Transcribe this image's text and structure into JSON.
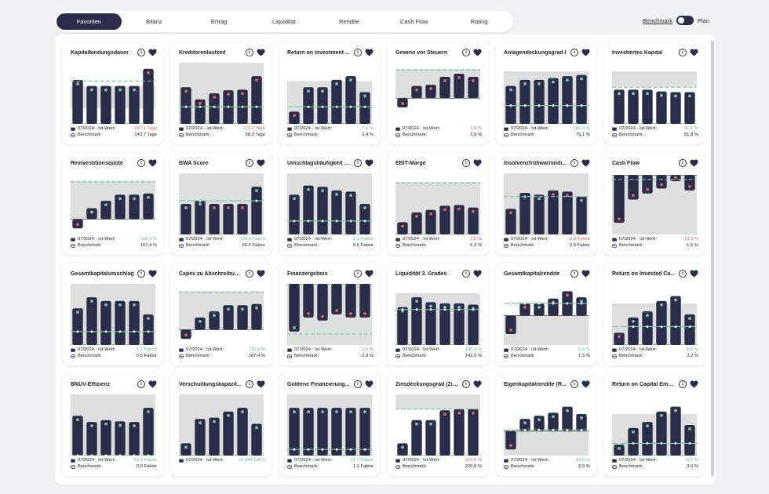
{
  "tabs": [
    {
      "label": "Favoriten",
      "active": true
    },
    {
      "label": "Bilanz"
    },
    {
      "label": "Ertrag"
    },
    {
      "label": "Liquidität"
    },
    {
      "label": "Rendite"
    },
    {
      "label": "Cash Flow"
    },
    {
      "label": "Rating"
    }
  ],
  "benchmark_toggle": {
    "left_label": "Benchmark",
    "right_label": "Plan"
  },
  "labels": {
    "period": "07/2024",
    "actual": "· Ist-Wert:",
    "benchmark": "Benchmark:",
    "info": "i"
  },
  "colors": {
    "bar": "#2a2d4a",
    "bg": "#dfdfdf",
    "line": "#7fc7a4",
    "red": "#e0605c",
    "green": "#5cc38f",
    "bench_dot": "#ffffff"
  },
  "cards": [
    {
      "title": "Kapitalbindungsdauer",
      "value": "187,1 Tage",
      "value_color": "red",
      "benchmark": "143,7 Tage",
      "base": 0,
      "values": [
        0.72,
        0.62,
        0.62,
        0.62,
        0.62,
        0.9
      ],
      "dots": [
        "g",
        "g",
        "g",
        "g",
        "g",
        "r"
      ],
      "bg": [
        0.25,
        0.62
      ],
      "target": 0.7
    },
    {
      "title": "Kreditorenlaufzeit",
      "value": "173,1 Tage",
      "value_color": "red",
      "benchmark": "58,3 Tage",
      "base": 0,
      "values": [
        0.6,
        0.4,
        0.5,
        0.55,
        0.56,
        0.78
      ],
      "dots": [
        "r",
        "r",
        "r",
        "r",
        "r",
        "r"
      ],
      "bg": [
        0,
        1
      ],
      "bench_line": 0.28
    },
    {
      "title": "Return on Investment ...",
      "value": "7,1 %",
      "value_color": "green",
      "benchmark": "3,4 %",
      "base": 0,
      "values": [
        0.2,
        0.6,
        0.6,
        0.72,
        0.78,
        0.52
      ],
      "dots": [
        "r",
        "g",
        "g",
        "g",
        "g",
        "g"
      ],
      "bg": [
        0,
        0.7
      ],
      "bench_line": 0.28
    },
    {
      "title": "Gewinn vor Steuern",
      "value": "2,0 %",
      "value_color": "red",
      "benchmark": "3,9 %",
      "base": 0.42,
      "values": [
        -0.15,
        0.2,
        0.22,
        0.35,
        0.4,
        0.35
      ],
      "dots": [
        "r",
        "r",
        "r",
        "r",
        "r",
        "r"
      ],
      "bg": [
        0.42,
        0.9
      ],
      "target": 0.88
    },
    {
      "title": "Anlagendeckungsgrad I",
      "value": "160,4 %",
      "value_color": "green",
      "benchmark": "76,1 %",
      "base": 0,
      "values": [
        0.62,
        0.72,
        0.72,
        0.75,
        0.78,
        0.8
      ],
      "dots": [
        "g",
        "g",
        "g",
        "g",
        "g",
        "g"
      ],
      "bg": [
        0,
        0.86
      ],
      "bench_line": 0.3
    },
    {
      "title": "Investiertes Kapital",
      "value": "50,6 %",
      "value_color": "green",
      "benchmark": "81,9 %",
      "base": 0,
      "values": [
        0.56,
        0.56,
        0.56,
        0.53,
        0.52,
        0.52
      ],
      "dots": [
        "g",
        "g",
        "g",
        "g",
        "g",
        "g"
      ],
      "bg": [
        0.6,
        0.86
      ],
      "target": 0.6
    },
    {
      "title": "Reinvestitionsquote",
      "value": "118,4 %",
      "value_color": "green",
      "benchmark": "167,4 %",
      "base": 0.25,
      "values": [
        -0.15,
        0.18,
        0.3,
        0.4,
        0.4,
        0.42
      ],
      "dots": [
        "r",
        "g",
        "g",
        "g",
        "g",
        "g"
      ],
      "bg": [
        0.25,
        0.88
      ],
      "target": 0.86
    },
    {
      "title": "BWA Score",
      "value": "100,0 Faktor",
      "value_color": "green",
      "benchmark": "66,0 Faktor",
      "base": 0,
      "values": [
        0.5,
        0.56,
        0.5,
        0.5,
        0.5,
        0.78
      ],
      "dots": [
        "g",
        "g",
        "r",
        "r",
        "r",
        "g"
      ],
      "bg": [
        0,
        1
      ],
      "bench_line": 0.55
    },
    {
      "title": "Umschlagshäufigkeit d...",
      "value": "1,1 Faktor",
      "value_color": "green",
      "benchmark": "0,5 Faktor",
      "base": 0,
      "values": [
        0.65,
        0.8,
        0.78,
        0.72,
        0.7,
        0.5
      ],
      "dots": [
        "g",
        "g",
        "g",
        "g",
        "g",
        "g"
      ],
      "bg": [
        0,
        1
      ],
      "bench_line": 0.22
    },
    {
      "title": "EBIT-Marge",
      "value": "3,6 %",
      "value_color": "red",
      "benchmark": "6,3 %",
      "base": 0,
      "values": [
        0.2,
        0.36,
        0.4,
        0.47,
        0.48,
        0.44
      ],
      "dots": [
        "r",
        "r",
        "r",
        "r",
        "r",
        "r"
      ],
      "bg": [
        0,
        0.86
      ],
      "target": 0.84
    },
    {
      "title": "Insolvenzfrühwarnindi...",
      "value": "0,9 Faktor",
      "value_color": "red",
      "benchmark": "0,8 Faktor",
      "base": 0,
      "values": [
        0.42,
        0.68,
        0.65,
        0.72,
        0.7,
        0.62
      ],
      "dots": [
        "r",
        "g",
        "g",
        "r",
        "r",
        "g"
      ],
      "bg": [
        0,
        1
      ],
      "target": 0.62
    },
    {
      "title": "Cash Flow",
      "value": "-10,3 %",
      "value_color": "red",
      "benchmark": "-1,5 %",
      "base": 0.97,
      "values": [
        -0.78,
        -0.4,
        -0.3,
        -0.22,
        -0.1,
        -0.25
      ],
      "dots": [
        "r",
        "r",
        "r",
        "r",
        "r",
        "r"
      ],
      "bg": [
        0,
        0.97
      ],
      "target": 0.9
    },
    {
      "title": "Gesamtkapitalumschlag",
      "value": "1,2 Faktor",
      "value_color": "green",
      "benchmark": "0,5 Faktor",
      "base": 0,
      "values": [
        0.6,
        0.78,
        0.72,
        0.72,
        0.72,
        0.5
      ],
      "dots": [
        "g",
        "g",
        "g",
        "g",
        "g",
        "g"
      ],
      "bg": [
        0,
        1
      ],
      "bench_line": 0.22
    },
    {
      "title": "Capex zu Abschreibun...",
      "value": "115,4 %",
      "value_color": "green",
      "benchmark": "167,4 %",
      "base": 0.25,
      "values": [
        -0.15,
        0.2,
        0.3,
        0.4,
        0.4,
        0.42
      ],
      "dots": [
        "r",
        "g",
        "g",
        "g",
        "g",
        "g"
      ],
      "bg": [
        0.25,
        0.88
      ],
      "target": 0.86
    },
    {
      "title": "Finanzergebnis",
      "value": "-1,6 %",
      "value_color": "red",
      "benchmark": "-2,0 %",
      "base": 1,
      "values": [
        -0.78,
        -0.55,
        -0.6,
        -0.5,
        -0.55,
        -0.55
      ],
      "dots": [
        "g",
        "r",
        "r",
        "r",
        "r",
        "r"
      ],
      "bg": [
        0,
        1
      ],
      "target": 0.18
    },
    {
      "title": "Liquidität 3. Grades",
      "value": "160,4 %",
      "value_color": "green",
      "benchmark": "142,9 %",
      "base": 0,
      "values": [
        0.62,
        0.78,
        0.7,
        0.68,
        0.68,
        0.66
      ],
      "dots": [
        "g",
        "g",
        "g",
        "g",
        "g",
        "g"
      ],
      "bg": [
        0,
        0.85
      ],
      "bench_line": 0.58
    },
    {
      "title": "Gesamtkapitalrendite",
      "value": "5,5 %",
      "value_color": "green",
      "benchmark": "1,5 %",
      "base": 0.48,
      "values": [
        -0.3,
        0.2,
        0.2,
        0.28,
        0.4,
        0.3
      ],
      "dots": [
        "r",
        "r",
        "g",
        "g",
        "r",
        "g"
      ],
      "bg": [
        0,
        0.48
      ],
      "bench_line": 0.68
    },
    {
      "title": "Return on Invested Ca...",
      "value": "6,5 %",
      "value_color": "green",
      "benchmark": "3,2 %",
      "base": 0,
      "values": [
        0.2,
        0.45,
        0.55,
        0.72,
        0.8,
        0.5
      ],
      "dots": [
        "r",
        "g",
        "g",
        "g",
        "g",
        "g"
      ],
      "bg": [
        0,
        0.68
      ],
      "bench_line": 0.3
    },
    {
      "title": "BNUV-Effizienz",
      "value": "62,4 Faktor",
      "value_color": "green",
      "benchmark": "0,0 Faktor",
      "base": 0,
      "values": [
        0.65,
        0.55,
        0.58,
        0.56,
        0.55,
        0.78
      ],
      "dots": [
        "g",
        "g",
        "g",
        "g",
        "g",
        "g"
      ],
      "bg": [
        0,
        1
      ],
      "bench_line": 0
    },
    {
      "title": "Verschuldungskapazit...",
      "value": "15.844.638 €",
      "value_color": "green",
      "benchmark": "",
      "base": 0,
      "values": [
        0.2,
        0.6,
        0.62,
        0.72,
        0.78,
        0.52
      ],
      "dots": [
        "g",
        "g",
        "g",
        "g",
        "g",
        "g"
      ],
      "bg": [
        0,
        1
      ]
    },
    {
      "title": "Goldene Finanzierung...",
      "value": "31,7 Faktor",
      "value_color": "green",
      "benchmark": "1,1 Faktor",
      "base": 0,
      "values": [
        0.78,
        0.78,
        0.78,
        0.78,
        0.78,
        0.78
      ],
      "dots": [
        "g",
        "g",
        "g",
        "g",
        "g",
        "g"
      ],
      "bg": [
        0,
        1
      ],
      "bench_line": 0.1
    },
    {
      "title": "Zinsdeckungsgrad (Zin...",
      "value": "224,5 %",
      "value_color": "red",
      "benchmark": "220,0 %",
      "base": 0,
      "values": [
        0.2,
        0.58,
        0.58,
        0.74,
        0.76,
        0.76
      ],
      "dots": [
        "g",
        "g",
        "g",
        "r",
        "r",
        "r"
      ],
      "bg": [
        0.75,
        1
      ],
      "target": 0.76
    },
    {
      "title": "Eigenkapitalrendite (R...",
      "value": "82,8 %",
      "value_color": "green",
      "benchmark": "2,9 %",
      "base": 0.4,
      "values": [
        -0.3,
        0.2,
        0.25,
        0.3,
        0.4,
        0.28
      ],
      "dots": [
        "r",
        "g",
        "g",
        "g",
        "g",
        "g"
      ],
      "bg": [
        0,
        0.4
      ],
      "bench_line": 0.42
    },
    {
      "title": "Return on Capital Emp...",
      "value": "9,5 %",
      "value_color": "green",
      "benchmark": "3,6 %",
      "base": 0,
      "values": [
        0.18,
        0.45,
        0.55,
        0.72,
        0.8,
        0.5
      ],
      "dots": [
        "g",
        "g",
        "g",
        "g",
        "g",
        "g"
      ],
      "bg": [
        0,
        0.68
      ],
      "bench_line": 0.2
    }
  ]
}
